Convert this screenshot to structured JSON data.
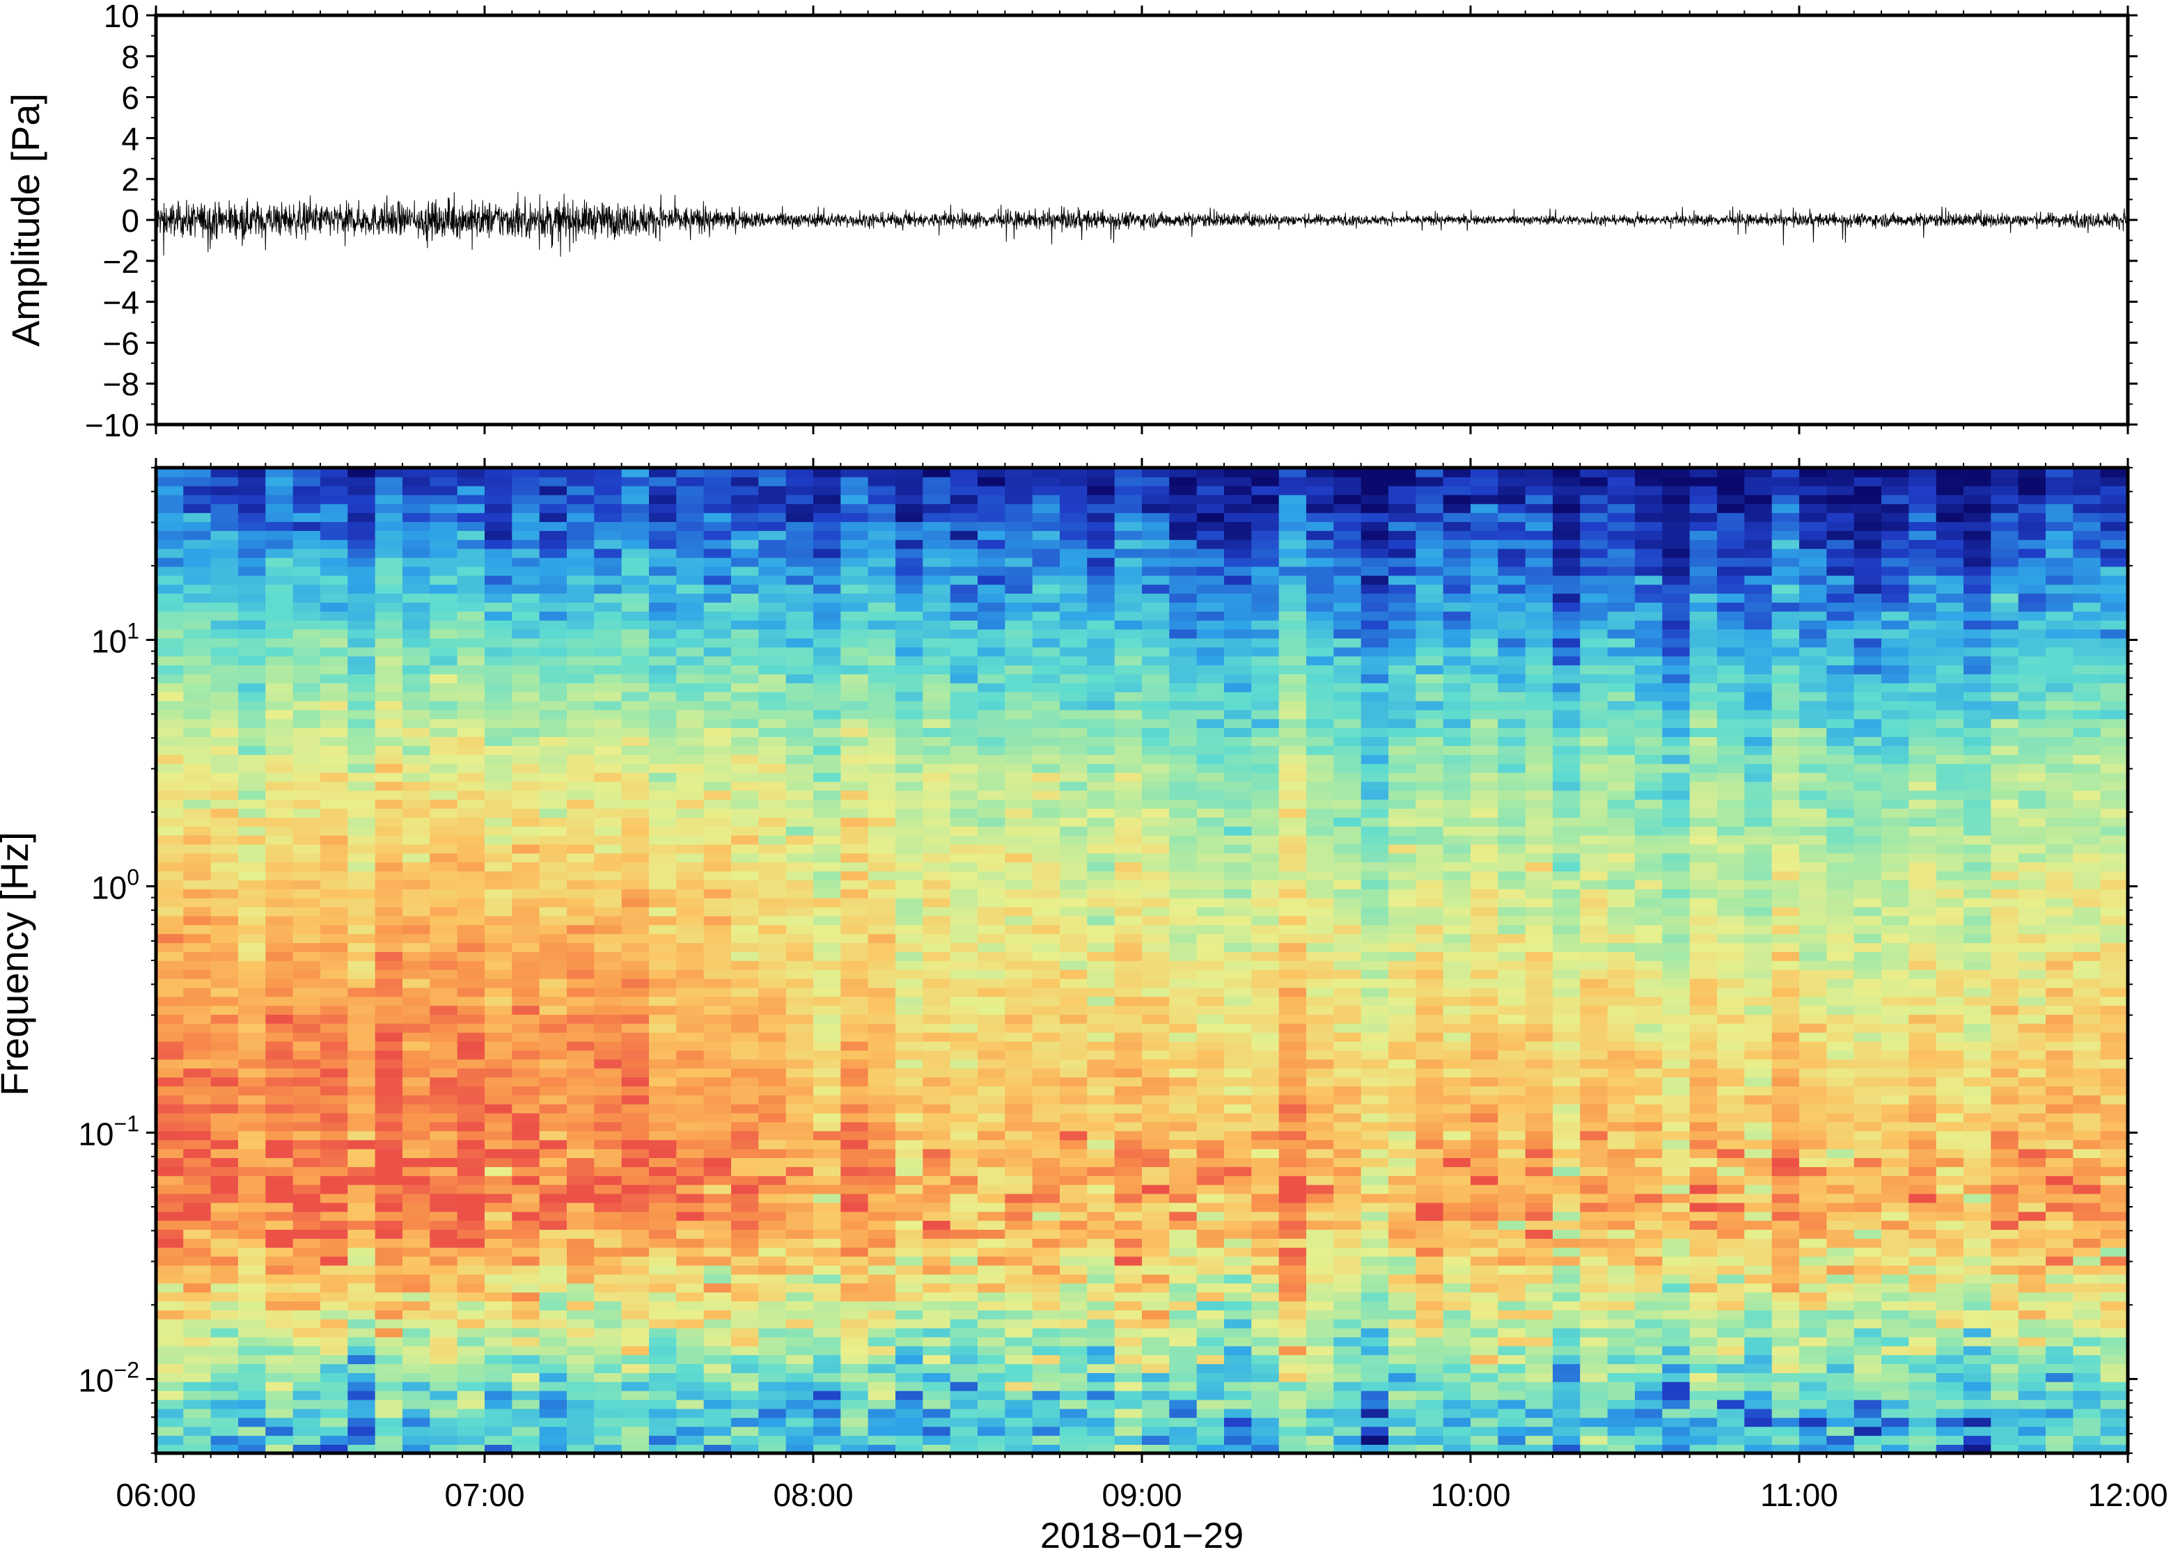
{
  "chart_data": [
    {
      "type": "line",
      "panel": "waveform",
      "ylabel": "Amplitude [Pa]",
      "ylim": [
        -10,
        10
      ],
      "yticks": [
        -10,
        -8,
        -6,
        -4,
        -2,
        0,
        2,
        4,
        6,
        8,
        10
      ],
      "ytick_labels": [
        "−10",
        "−8",
        "−6",
        "−4",
        "−2",
        "0",
        "2",
        "4",
        "6",
        "8",
        "10"
      ],
      "xlim": [
        "06:00",
        "12:00"
      ],
      "envelope": {
        "x": [
          "06:00",
          "06:15",
          "06:30",
          "06:45",
          "07:00",
          "07:15",
          "07:30",
          "07:45",
          "08:00",
          "08:15",
          "08:30",
          "08:45",
          "09:00",
          "09:15",
          "09:30",
          "09:45",
          "10:00",
          "10:15",
          "10:30",
          "10:45",
          "11:00",
          "11:15",
          "11:30",
          "11:45",
          "12:00"
        ],
        "amplitude": [
          0.7,
          0.8,
          0.7,
          0.7,
          0.8,
          0.8,
          0.7,
          0.4,
          0.3,
          0.3,
          0.35,
          0.4,
          0.35,
          0.3,
          0.25,
          0.2,
          0.2,
          0.2,
          0.2,
          0.25,
          0.25,
          0.3,
          0.3,
          0.3,
          0.35
        ],
        "peak_min": [
          -2.0,
          -1.7,
          -1.3,
          -1.9,
          -1.8,
          -1.9,
          -1.5,
          -0.8,
          -0.7,
          -0.7,
          -1.2,
          -1.2,
          -1.1,
          -0.7,
          -0.6,
          -0.6,
          -0.6,
          -0.6,
          -0.5,
          -0.6,
          -1.4,
          -0.9,
          -0.9,
          -0.8,
          -1.0
        ],
        "peak_max": [
          1.6,
          1.5,
          1.3,
          1.4,
          1.5,
          1.9,
          1.7,
          0.7,
          0.7,
          0.7,
          0.8,
          0.8,
          0.8,
          0.6,
          0.6,
          0.5,
          0.5,
          0.6,
          0.6,
          0.7,
          0.7,
          0.7,
          0.7,
          0.7,
          0.7
        ]
      },
      "color": "#000000"
    },
    {
      "type": "heatmap",
      "panel": "spectrogram",
      "ylabel": "Frequency [Hz]",
      "xlabel": "2018−01−29",
      "yscale": "log",
      "ylim": [
        0.005,
        50
      ],
      "yticks": [
        0.01,
        0.1,
        1,
        10
      ],
      "ytick_labels": [
        {
          "base": "10",
          "exp": "−2"
        },
        {
          "base": "10",
          "exp": "−1"
        },
        {
          "base": "10",
          "exp": "0"
        },
        {
          "base": "10",
          "exp": "1"
        }
      ],
      "xlim": [
        "06:00",
        "12:00"
      ],
      "xticks": [
        "06:00",
        "07:00",
        "08:00",
        "09:00",
        "10:00",
        "11:00",
        "12:00"
      ],
      "colormap": "spectral",
      "colormap_stops": [
        "#0a0a6e",
        "#1f3ec7",
        "#2fa4e8",
        "#5fdcd0",
        "#a6e9a6",
        "#e8ef8c",
        "#fbc563",
        "#f9964d",
        "#ec5148"
      ],
      "grid": false,
      "time_columns": [
        "06:00",
        "06:30",
        "07:00",
        "07:30",
        "08:00",
        "08:30",
        "09:00",
        "09:30",
        "10:00",
        "10:30",
        "11:00",
        "11:30",
        "12:00"
      ],
      "level_at_0.007Hz": [
        0.34,
        0.32,
        0.34,
        0.32,
        0.3,
        0.34,
        0.36,
        0.3,
        0.3,
        0.32,
        0.3,
        0.34,
        0.32
      ],
      "level_at_0.05Hz": [
        0.92,
        0.95,
        0.94,
        0.92,
        0.85,
        0.82,
        0.8,
        0.78,
        0.8,
        0.8,
        0.8,
        0.82,
        0.82
      ],
      "level_at_0.3Hz": [
        0.82,
        0.86,
        0.87,
        0.84,
        0.72,
        0.7,
        0.68,
        0.66,
        0.65,
        0.66,
        0.66,
        0.68,
        0.7
      ],
      "level_at_3Hz": [
        0.62,
        0.62,
        0.62,
        0.6,
        0.56,
        0.56,
        0.5,
        0.45,
        0.44,
        0.45,
        0.45,
        0.48,
        0.5
      ],
      "level_at_30Hz": [
        0.2,
        0.2,
        0.2,
        0.18,
        0.16,
        0.16,
        0.14,
        0.1,
        0.09,
        0.09,
        0.1,
        0.12,
        0.14
      ]
    }
  ]
}
